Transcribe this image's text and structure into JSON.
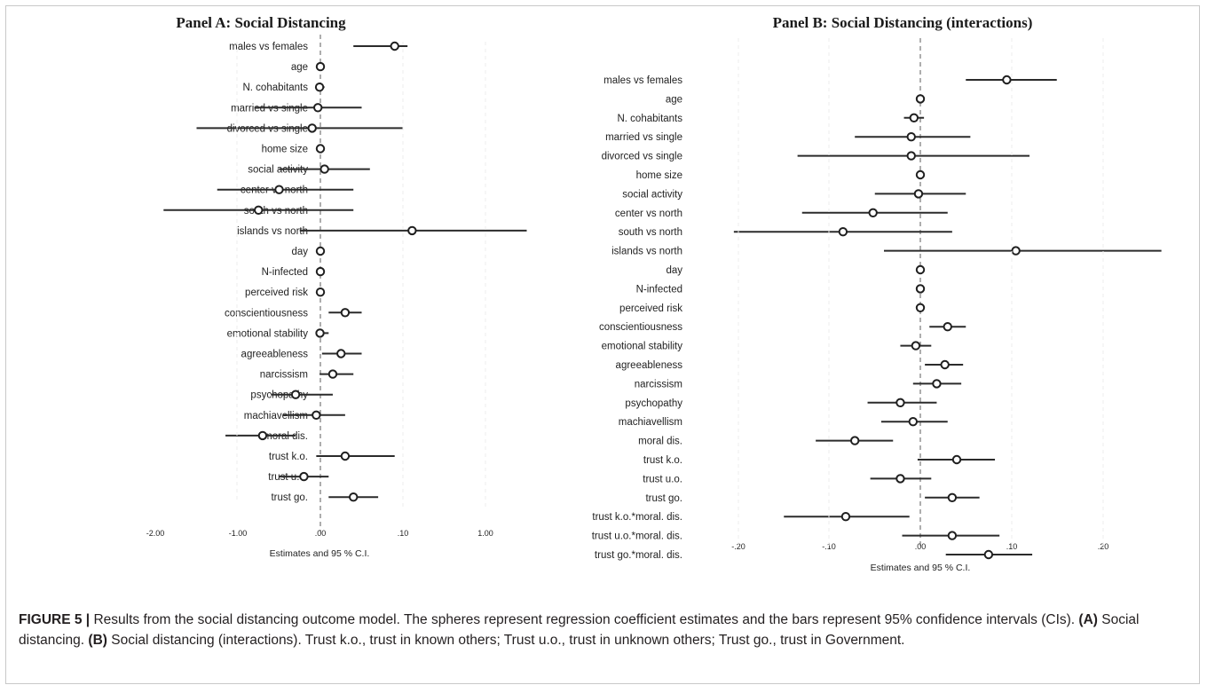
{
  "caption": {
    "figure_label": "FIGURE 5 |",
    "intro": " Results from the social distancing outcome model. The spheres represent regression coefficient estimates and the bars represent 95% confidence intervals (CIs). ",
    "a_label": "(A)",
    "a_text": " Social distancing. ",
    "b_label": "(B)",
    "b_text": " Social distancing (interactions). Trust k.o., trust in known others; Trust u.o., trust in unknown others; Trust go., trust in Government."
  },
  "chart_data": [
    {
      "type": "forest",
      "title": "Panel A: Social Distancing",
      "xlabel": "Estimates and 95 % C.I.",
      "tick_labels": [
        "-2.00",
        "-1.00",
        ".00",
        ".10",
        "1.00"
      ],
      "reference_line": ".00",
      "items": [
        {
          "label": "males vs females",
          "est": 0.09,
          "lo": 0.04,
          "hi": 0.15
        },
        {
          "label": "age",
          "est": 0.0,
          "lo": 0.0,
          "hi": 0.0
        },
        {
          "label": "N. cohabitants",
          "est": -0.01,
          "lo": -0.02,
          "hi": 0.005
        },
        {
          "label": "married vs single",
          "est": -0.03,
          "lo": -0.8,
          "hi": 0.05
        },
        {
          "label": "divorced vs single",
          "est": -0.1,
          "lo": -1.5,
          "hi": 0.1
        },
        {
          "label": "home size",
          "est": 0.0,
          "lo": 0.0,
          "hi": 0.0
        },
        {
          "label": "social activity",
          "est": 0.005,
          "lo": -0.5,
          "hi": 0.06
        },
        {
          "label": "center vs north",
          "est": -0.5,
          "lo": -1.25,
          "hi": 0.04
        },
        {
          "label": "south vs north",
          "est": -0.75,
          "lo": -1.9,
          "hi": 0.04
        },
        {
          "label": "islands vs north",
          "est": 0.2,
          "lo": -0.25,
          "hi": 1.5
        },
        {
          "label": "day",
          "est": 0.0,
          "lo": -0.005,
          "hi": 0.005
        },
        {
          "label": "N-infected",
          "est": 0.0,
          "lo": 0.0,
          "hi": 0.0
        },
        {
          "label": "perceived risk",
          "est": 0.0,
          "lo": 0.0,
          "hi": 0.0
        },
        {
          "label": "conscientiousness",
          "est": 0.03,
          "lo": 0.01,
          "hi": 0.05
        },
        {
          "label": "emotional stability",
          "est": -0.005,
          "lo": -0.02,
          "hi": 0.01
        },
        {
          "label": "agreeableness",
          "est": 0.025,
          "lo": 0.002,
          "hi": 0.05
        },
        {
          "label": "narcissism",
          "est": 0.015,
          "lo": -0.01,
          "hi": 0.04
        },
        {
          "label": "psychopathy",
          "est": -0.3,
          "lo": -0.6,
          "hi": 0.015
        },
        {
          "label": "machiavellism",
          "est": -0.05,
          "lo": -0.45,
          "hi": 0.03
        },
        {
          "label": "moral dis.",
          "est": -0.7,
          "lo": -1.15,
          "hi": -0.3
        },
        {
          "label": "trust k.o.",
          "est": 0.03,
          "lo": -0.05,
          "hi": 0.09
        },
        {
          "label": "trust u.o.",
          "est": -0.2,
          "lo": -0.5,
          "hi": 0.01
        },
        {
          "label": "trust go.",
          "est": 0.04,
          "lo": 0.01,
          "hi": 0.07
        }
      ]
    },
    {
      "type": "forest",
      "title": "Panel B: Social Distancing (interactions)",
      "xlabel": "Estimates and 95 % C.I.",
      "tick_labels": [
        "-.20",
        "-.10",
        ".00",
        ".10",
        ".20"
      ],
      "xlim": [
        -0.2,
        0.2
      ],
      "reference_line": 0.0,
      "items": [
        {
          "label": "males vs females",
          "est": 0.095,
          "lo": 0.05,
          "hi": 0.15
        },
        {
          "label": "age",
          "est": 0.0,
          "lo": 0.0,
          "hi": 0.0
        },
        {
          "label": "N. cohabitants",
          "est": -0.007,
          "lo": -0.018,
          "hi": 0.004
        },
        {
          "label": "married vs single",
          "est": -0.01,
          "lo": -0.072,
          "hi": 0.055
        },
        {
          "label": "divorced vs single",
          "est": -0.01,
          "lo": -0.135,
          "hi": 0.12
        },
        {
          "label": "home size",
          "est": 0.0,
          "lo": 0.0,
          "hi": 0.0
        },
        {
          "label": "social activity",
          "est": -0.002,
          "lo": -0.05,
          "hi": 0.05
        },
        {
          "label": "center vs north",
          "est": -0.052,
          "lo": -0.13,
          "hi": 0.03
        },
        {
          "label": "south vs north",
          "est": -0.085,
          "lo": -0.205,
          "hi": 0.035
        },
        {
          "label": "islands vs north",
          "est": 0.105,
          "lo": -0.04,
          "hi": 0.265
        },
        {
          "label": "day",
          "est": 0.0,
          "lo": -0.004,
          "hi": 0.004
        },
        {
          "label": "N-infected",
          "est": 0.0,
          "lo": 0.0,
          "hi": 0.0
        },
        {
          "label": "perceived risk",
          "est": 0.0,
          "lo": 0.0,
          "hi": 0.0
        },
        {
          "label": "conscientiousness",
          "est": 0.03,
          "lo": 0.01,
          "hi": 0.05
        },
        {
          "label": "emotional stability",
          "est": -0.005,
          "lo": -0.022,
          "hi": 0.012
        },
        {
          "label": "agreeableness",
          "est": 0.027,
          "lo": 0.005,
          "hi": 0.047
        },
        {
          "label": "narcissism",
          "est": 0.018,
          "lo": -0.008,
          "hi": 0.045
        },
        {
          "label": "psychopathy",
          "est": -0.022,
          "lo": -0.058,
          "hi": 0.018
        },
        {
          "label": "machiavellism",
          "est": -0.008,
          "lo": -0.043,
          "hi": 0.03
        },
        {
          "label": "moral dis.",
          "est": -0.072,
          "lo": -0.115,
          "hi": -0.03
        },
        {
          "label": "trust k.o.",
          "est": 0.04,
          "lo": -0.003,
          "hi": 0.082
        },
        {
          "label": "trust u.o.",
          "est": -0.022,
          "lo": -0.055,
          "hi": 0.012
        },
        {
          "label": "trust go.",
          "est": 0.035,
          "lo": 0.005,
          "hi": 0.065
        },
        {
          "label": "trust k.o.*moral. dis.",
          "est": -0.082,
          "lo": -0.15,
          "hi": -0.012
        },
        {
          "label": "trust u.o.*moral. dis.",
          "est": 0.035,
          "lo": -0.02,
          "hi": 0.087
        },
        {
          "label": "trust go.*moral. dis.",
          "est": 0.075,
          "lo": 0.028,
          "hi": 0.123
        }
      ]
    }
  ]
}
